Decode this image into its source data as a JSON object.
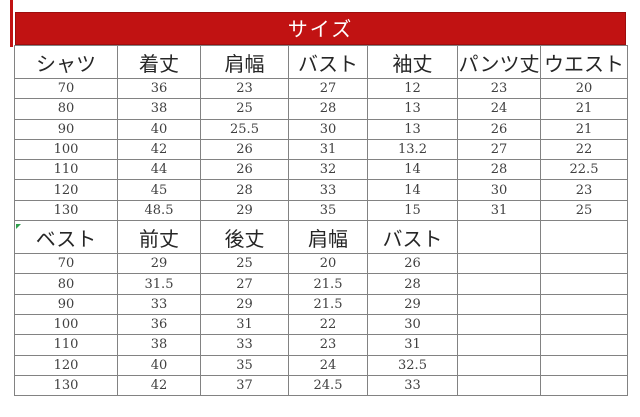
{
  "title": "サイズ",
  "accent_color": "#c11212",
  "marker_color": "#2f9e4c",
  "table": {
    "sections": [
      {
        "header": [
          "シャツ",
          "着丈",
          "肩幅",
          "バスト",
          "袖丈",
          "パンツ丈",
          "ウエスト"
        ],
        "rows": [
          [
            "70",
            "36",
            "23",
            "27",
            "12",
            "23",
            "20"
          ],
          [
            "80",
            "38",
            "25",
            "28",
            "13",
            "24",
            "21"
          ],
          [
            "90",
            "40",
            "25.5",
            "30",
            "13",
            "26",
            "21"
          ],
          [
            "100",
            "42",
            "26",
            "31",
            "13.2",
            "27",
            "22"
          ],
          [
            "110",
            "44",
            "26",
            "32",
            "14",
            "28",
            "22.5"
          ],
          [
            "120",
            "45",
            "28",
            "33",
            "14",
            "30",
            "23"
          ],
          [
            "130",
            "48.5",
            "29",
            "35",
            "15",
            "31",
            "25"
          ]
        ]
      },
      {
        "header": [
          "ベスト",
          "前丈",
          "後丈",
          "肩幅",
          "バスト",
          "",
          ""
        ],
        "rows": [
          [
            "70",
            "29",
            "25",
            "20",
            "26",
            "",
            ""
          ],
          [
            "80",
            "31.5",
            "27",
            "21.5",
            "28",
            "",
            ""
          ],
          [
            "90",
            "33",
            "29",
            "21.5",
            "29",
            "",
            ""
          ],
          [
            "100",
            "36",
            "31",
            "22",
            "30",
            "",
            ""
          ],
          [
            "110",
            "38",
            "33",
            "23",
            "31",
            "",
            ""
          ],
          [
            "120",
            "40",
            "35",
            "24",
            "32.5",
            "",
            ""
          ],
          [
            "130",
            "42",
            "37",
            "24.5",
            "33",
            "",
            ""
          ]
        ]
      }
    ]
  },
  "chart_data": [
    {
      "type": "table",
      "title": "サイズ",
      "columns": [
        "シャツ",
        "着丈",
        "肩幅",
        "バスト",
        "袖丈",
        "パンツ丈",
        "ウエスト"
      ],
      "rows": [
        [
          70,
          36,
          23,
          27,
          12,
          23,
          20
        ],
        [
          80,
          38,
          25,
          28,
          13,
          24,
          21
        ],
        [
          90,
          40,
          25.5,
          30,
          13,
          26,
          21
        ],
        [
          100,
          42,
          26,
          31,
          13.2,
          27,
          22
        ],
        [
          110,
          44,
          26,
          32,
          14,
          28,
          22.5
        ],
        [
          120,
          45,
          28,
          33,
          14,
          30,
          23
        ],
        [
          130,
          48.5,
          29,
          35,
          15,
          31,
          25
        ]
      ]
    },
    {
      "type": "table",
      "title": "ベスト",
      "columns": [
        "ベスト",
        "前丈",
        "後丈",
        "肩幅",
        "バスト"
      ],
      "rows": [
        [
          70,
          29,
          25,
          20,
          26
        ],
        [
          80,
          31.5,
          27,
          21.5,
          28
        ],
        [
          90,
          33,
          29,
          21.5,
          29
        ],
        [
          100,
          36,
          31,
          22,
          30
        ],
        [
          110,
          38,
          33,
          23,
          31
        ],
        [
          120,
          40,
          35,
          24,
          32.5
        ],
        [
          130,
          42,
          37,
          24.5,
          33
        ]
      ]
    }
  ]
}
